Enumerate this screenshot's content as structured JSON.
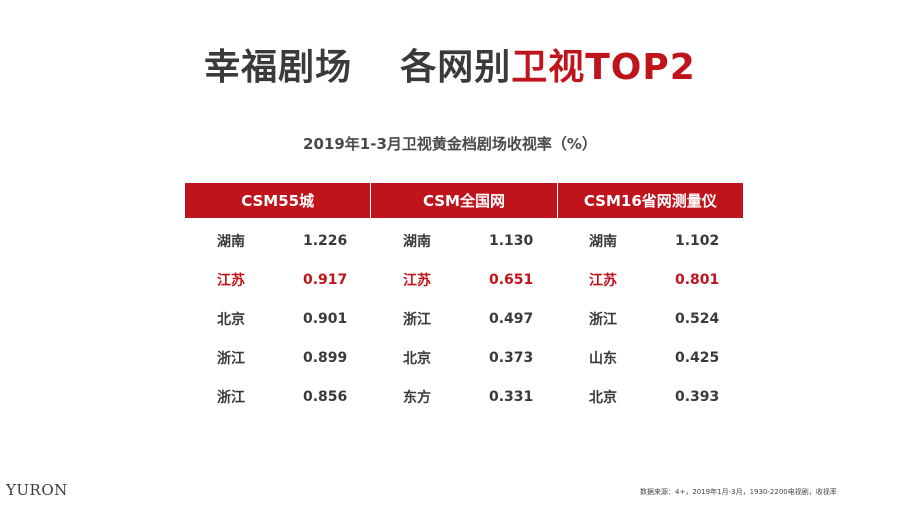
{
  "title": {
    "part1": "幸福剧场",
    "part2": "各网别",
    "accent": "卫视",
    "part3": "TOP2"
  },
  "subtitle": "2019年1-3月卫视黄金档剧场收视率（%）",
  "table": {
    "headers": [
      "CSM55城",
      "CSM全国网",
      "CSM16省网测量仪"
    ],
    "rows": [
      {
        "highlight": false,
        "cells": [
          [
            "湖南",
            "1.226"
          ],
          [
            "湖南",
            "1.130"
          ],
          [
            "湖南",
            "1.102"
          ]
        ]
      },
      {
        "highlight": true,
        "cells": [
          [
            "江苏",
            "0.917"
          ],
          [
            "江苏",
            "0.651"
          ],
          [
            "江苏",
            "0.801"
          ]
        ]
      },
      {
        "highlight": false,
        "cells": [
          [
            "北京",
            "0.901"
          ],
          [
            "浙江",
            "0.497"
          ],
          [
            "浙江",
            "0.524"
          ]
        ]
      },
      {
        "highlight": false,
        "cells": [
          [
            "浙江",
            "0.899"
          ],
          [
            "北京",
            "0.373"
          ],
          [
            "山东",
            "0.425"
          ]
        ]
      },
      {
        "highlight": false,
        "cells": [
          [
            "浙江",
            "0.856"
          ],
          [
            "东方",
            "0.331"
          ],
          [
            "北京",
            "0.393"
          ]
        ]
      }
    ]
  },
  "logo": "YURON",
  "source_note": "数据来源：4+，2019年1月-3月，1930-2200电视剧，收视率",
  "colors": {
    "accent": "#c0141d",
    "text": "#3a3a3a",
    "header_text": "#ffffff"
  }
}
